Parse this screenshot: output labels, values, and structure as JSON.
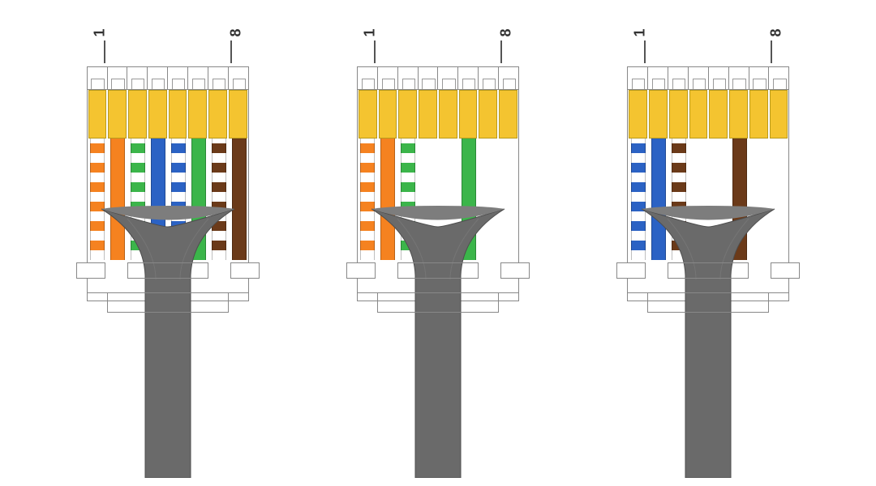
{
  "diagram": {
    "type": "infographic",
    "background_color": "#ffffff",
    "outline_color": "#888888",
    "jacket_color": "#6a6a6a",
    "jacket_highlight": "#7d7d7d",
    "gold_contact_color": "#f4c430",
    "label_font_size": 18,
    "label_color": "#333333",
    "pin_label_start": "1",
    "pin_label_end": "8",
    "wire_palette": {
      "orange": "#f58220",
      "green": "#3bb54a",
      "blue": "#2b62c4",
      "brown": "#6b3a19",
      "white": "#ffffff"
    },
    "connectors": [
      {
        "name": "connector-full-8wire",
        "wires": [
          {
            "slot": 1,
            "color": "orange",
            "striped": true
          },
          {
            "slot": 2,
            "color": "orange",
            "striped": false
          },
          {
            "slot": 3,
            "color": "green",
            "striped": true
          },
          {
            "slot": 4,
            "color": "blue",
            "striped": false
          },
          {
            "slot": 5,
            "color": "blue",
            "striped": true
          },
          {
            "slot": 6,
            "color": "green",
            "striped": false
          },
          {
            "slot": 7,
            "color": "brown",
            "striped": true
          },
          {
            "slot": 8,
            "color": "brown",
            "striped": false
          }
        ]
      },
      {
        "name": "connector-4wire-orange-green",
        "wires": [
          {
            "slot": 1,
            "color": "orange",
            "striped": true
          },
          {
            "slot": 2,
            "color": "orange",
            "striped": false
          },
          {
            "slot": 3,
            "color": "green",
            "striped": true
          },
          {
            "slot": 6,
            "color": "green",
            "striped": false
          }
        ]
      },
      {
        "name": "connector-4wire-blue-brown",
        "wires": [
          {
            "slot": 1,
            "color": "blue",
            "striped": true
          },
          {
            "slot": 2,
            "color": "blue",
            "striped": false
          },
          {
            "slot": 3,
            "color": "brown",
            "striped": true
          },
          {
            "slot": 6,
            "color": "brown",
            "striped": false
          }
        ]
      }
    ]
  }
}
